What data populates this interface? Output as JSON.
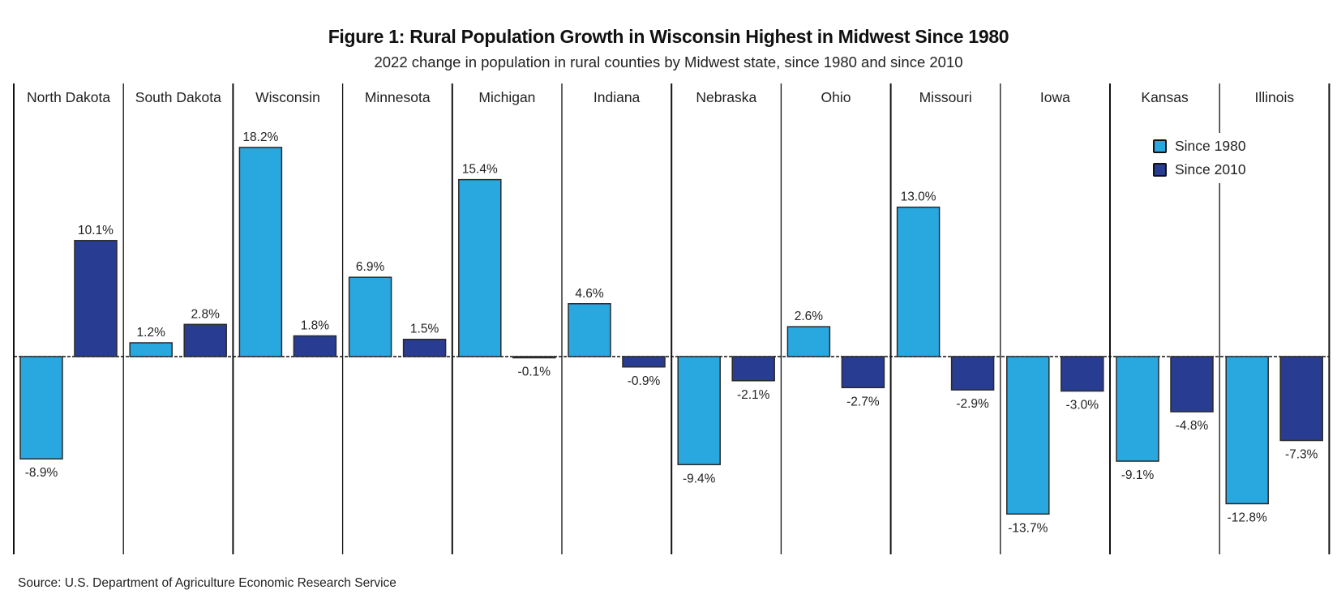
{
  "title": "Figure 1: Rural Population Growth in Wisconsin Highest in Midwest Since 1980",
  "subtitle": "2022 change in population in rural counties by Midwest state, since 1980 and since 2010",
  "source": "Source: U.S. Department of Agriculture Economic Research Service",
  "colors": {
    "since_1980": "#29a8e0",
    "since_2010": "#283c91",
    "outline": "#2a2a2a"
  },
  "legend": {
    "placement": "top-right",
    "items": [
      {
        "label": "Since 1980",
        "color": "#29a8e0"
      },
      {
        "label": "Since 2010",
        "color": "#283c91"
      }
    ]
  },
  "chart_data": {
    "type": "bar",
    "title": "Figure 1: Rural Population Growth in Wisconsin Highest in Midwest Since 1980",
    "subtitle": "2022 change in population in rural counties by Midwest state, since 1980 and since 2010",
    "xlabel": "",
    "ylabel": "",
    "unit": "%",
    "grid": false,
    "zero_line": "dotted",
    "categories": [
      "North Dakota",
      "South Dakota",
      "Wisconsin",
      "Minnesota",
      "Michigan",
      "Indiana",
      "Nebraska",
      "Ohio",
      "Missouri",
      "Iowa",
      "Kansas",
      "Illinois"
    ],
    "series": [
      {
        "name": "Since 1980",
        "values": [
          -8.9,
          1.2,
          18.2,
          6.9,
          15.4,
          4.6,
          -9.4,
          2.6,
          13.0,
          -13.7,
          -9.1,
          -12.8
        ]
      },
      {
        "name": "Since 2010",
        "values": [
          10.1,
          2.8,
          1.8,
          1.5,
          -0.1,
          -0.9,
          -2.1,
          -2.7,
          -2.9,
          -3.0,
          -4.8,
          -7.3
        ]
      }
    ],
    "ylim": [
      -16,
      24
    ]
  }
}
